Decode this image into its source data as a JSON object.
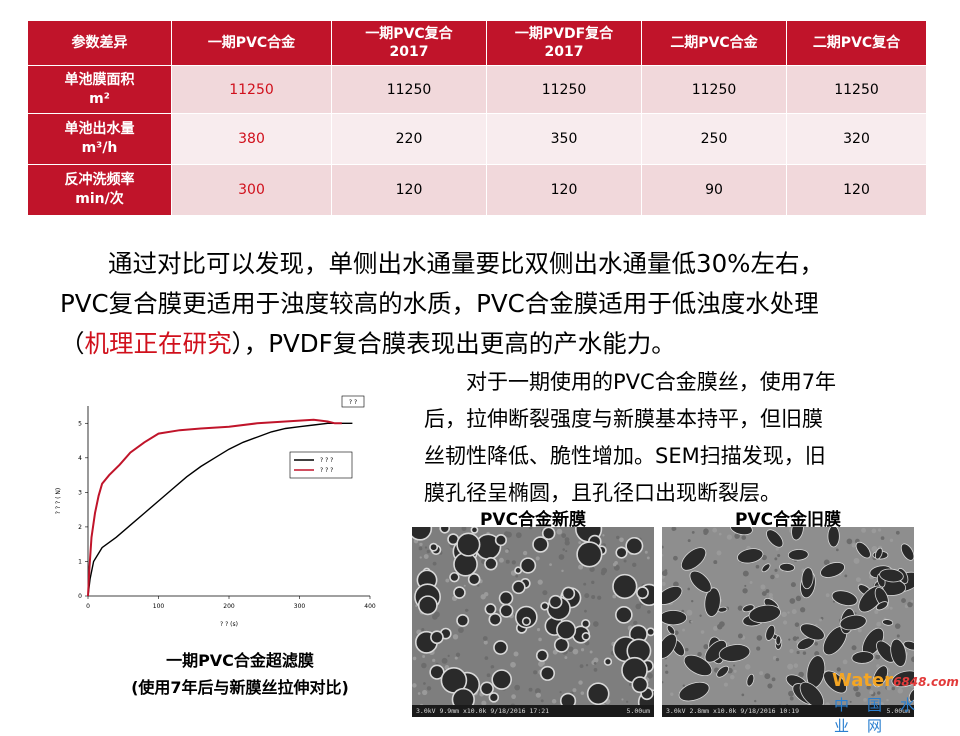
{
  "table": {
    "headers": [
      "参数差异",
      "一期PVC合金",
      "一期PVC复合\n2017",
      "一期PVDF复合\n2017",
      "二期PVC合金",
      "二期PVC复合"
    ],
    "rows": [
      {
        "label": "单池膜面积\nm²",
        "values": [
          "11250",
          "11250",
          "11250",
          "11250",
          "11250"
        ]
      },
      {
        "label": "单池出水量\nm³/h",
        "values": [
          "380",
          "220",
          "350",
          "250",
          "320"
        ]
      },
      {
        "label": "反冲洗频率\nmin/次",
        "values": [
          "300",
          "120",
          "120",
          "90",
          "120"
        ]
      }
    ]
  },
  "paragraph": {
    "line1": "通过对比可以发现，单侧出水通量要比双侧出水通量低30%左右，",
    "line2": "PVC复合膜更适用于浊度较高的水质，PVC合金膜适用于低浊度水处理",
    "line3_pre": "（",
    "line3_red": "机理正在研究",
    "line3_post": "），PVDF复合膜表现出更高的产水能力。"
  },
  "paragraph2": {
    "line1": "对于一期使用的PVC合金膜丝，使用7年",
    "line2": "后，拉伸断裂强度与新膜基本持平，但旧膜",
    "line3": "丝韧性降低、脆性增加。SEM扫描发现，旧",
    "line4": "膜孔径呈椭圆，且孔径口出现断裂层。"
  },
  "chart_data": {
    "type": "line",
    "xlabel": "? ?  (s)",
    "ylabel": "? ? ? ( N)",
    "xlim": [
      0,
      400
    ],
    "ylim": [
      0,
      5.5
    ],
    "xticks": [
      "0",
      "100",
      "200",
      "300",
      "400"
    ],
    "yticks": [
      "0",
      "1",
      "2",
      "3",
      "4",
      "5"
    ],
    "legend_box_label": "? ?",
    "series": [
      {
        "name": "? ? ?",
        "color": "#000000",
        "x": [
          0,
          3,
          8,
          20,
          40,
          60,
          80,
          100,
          120,
          140,
          160,
          180,
          200,
          220,
          240,
          260,
          280,
          300,
          320,
          340,
          360,
          375
        ],
        "y": [
          0,
          0.5,
          1.0,
          1.4,
          1.7,
          2.05,
          2.4,
          2.75,
          3.1,
          3.45,
          3.75,
          4.0,
          4.25,
          4.45,
          4.6,
          4.75,
          4.85,
          4.9,
          4.95,
          5.0,
          5.0,
          5.0
        ]
      },
      {
        "name": "? ? ?",
        "color": "#c0142a",
        "x": [
          0,
          2,
          5,
          10,
          15,
          20,
          30,
          45,
          60,
          80,
          100,
          130,
          160,
          200,
          240,
          280,
          320,
          340,
          350,
          360
        ],
        "y": [
          0,
          0.8,
          1.7,
          2.4,
          2.9,
          3.25,
          3.5,
          3.8,
          4.15,
          4.45,
          4.7,
          4.8,
          4.85,
          4.9,
          5.0,
          5.05,
          5.1,
          5.05,
          5.0,
          5.0
        ]
      }
    ]
  },
  "chart_caption": {
    "line1": "一期PVC合金超滤膜",
    "line2": "(使用7年后与新膜丝拉伸对比)"
  },
  "sem": {
    "new_title": "PVC合金新膜",
    "old_title": "PVC合金旧膜",
    "new_info": "3.0kV 9.9mm x10.0k 9/18/2016 17:21",
    "new_scale": "5.00um",
    "old_info": "3.0kV 2.8mm x10.0k 9/18/2016 10:19",
    "old_scale": "5.00um"
  },
  "watermark": {
    "brand": "Water",
    "num": "6848.com",
    "cn": "中国水业网"
  }
}
